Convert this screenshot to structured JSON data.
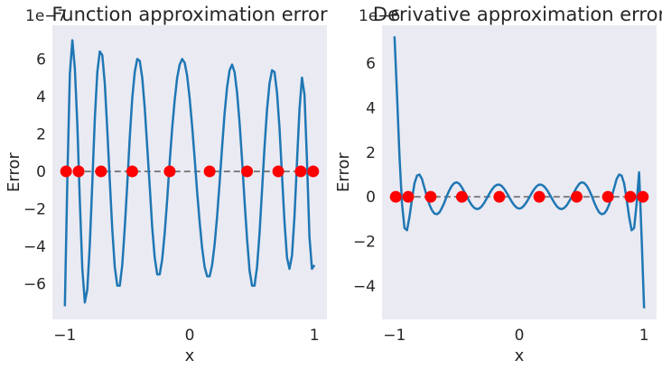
{
  "chart_data": [
    {
      "type": "line",
      "title": "Function approximation error",
      "xlabel": "x",
      "ylabel": "Error",
      "offset_label": "1e−7",
      "xlim": [
        -1.1,
        1.1
      ],
      "ylim": [
        -7.9,
        7.8
      ],
      "xticks": [
        -1,
        0,
        1
      ],
      "yticks": [
        -6,
        -4,
        -2,
        0,
        2,
        4,
        6
      ],
      "grid": false,
      "background": "#eaeaf2",
      "line_color": "#1f77b4",
      "zero_line_color": "#808080",
      "node_color": "#ff0000",
      "nodes_x": [
        -0.99,
        -0.89,
        -0.71,
        -0.46,
        -0.16,
        0.16,
        0.46,
        0.71,
        0.89,
        0.99
      ],
      "series": [
        {
          "x": [
            -1.0,
            -0.98,
            -0.96,
            -0.94,
            -0.92,
            -0.9,
            -0.88,
            -0.86,
            -0.84,
            -0.82,
            -0.8,
            -0.78,
            -0.76,
            -0.74,
            -0.72,
            -0.7,
            -0.68,
            -0.66,
            -0.64,
            -0.62,
            -0.6,
            -0.58,
            -0.56,
            -0.54,
            -0.52,
            -0.5,
            -0.48,
            -0.46,
            -0.44,
            -0.42,
            -0.4,
            -0.38,
            -0.36,
            -0.34,
            -0.32,
            -0.3,
            -0.28,
            -0.26,
            -0.24,
            -0.22,
            -0.2,
            -0.18,
            -0.16,
            -0.14,
            -0.12,
            -0.1,
            -0.08,
            -0.06,
            -0.04,
            -0.02,
            0.0,
            0.02,
            0.04,
            0.06,
            0.08,
            0.1,
            0.12,
            0.14,
            0.16,
            0.18,
            0.2,
            0.22,
            0.24,
            0.26,
            0.28,
            0.3,
            0.32,
            0.34,
            0.36,
            0.38,
            0.4,
            0.42,
            0.44,
            0.46,
            0.48,
            0.5,
            0.52,
            0.54,
            0.56,
            0.58,
            0.6,
            0.62,
            0.64,
            0.66,
            0.68,
            0.7,
            0.72,
            0.74,
            0.76,
            0.78,
            0.8,
            0.82,
            0.84,
            0.86,
            0.88,
            0.9,
            0.92,
            0.94,
            0.96,
            0.98,
            1.0
          ],
          "y": [
            -7.2,
            -0.4,
            5.2,
            7.0,
            5.5,
            2.5,
            -1.6,
            -5.2,
            -7.0,
            -6.3,
            -3.9,
            -0.6,
            2.8,
            5.3,
            6.4,
            6.2,
            4.7,
            2.2,
            -0.5,
            -3.1,
            -5.1,
            -6.1,
            -6.1,
            -5.0,
            -3.0,
            -0.7,
            1.8,
            3.9,
            5.3,
            6.0,
            5.9,
            5.0,
            3.4,
            1.3,
            -0.8,
            -3.0,
            -4.6,
            -5.5,
            -5.5,
            -4.7,
            -3.3,
            -1.5,
            0.5,
            2.3,
            3.8,
            5.0,
            5.7,
            6.0,
            5.8,
            5.1,
            3.9,
            2.4,
            0.7,
            -1.1,
            -2.7,
            -4.1,
            -5.1,
            -5.6,
            -5.6,
            -5.0,
            -3.9,
            -2.4,
            -0.6,
            1.3,
            3.1,
            4.5,
            5.4,
            5.7,
            5.3,
            4.2,
            2.6,
            0.6,
            -1.6,
            -3.6,
            -5.3,
            -6.1,
            -6.1,
            -5.1,
            -3.3,
            -1.0,
            1.3,
            3.3,
            4.7,
            5.4,
            5.3,
            4.2,
            2.3,
            -0.2,
            -2.7,
            -4.6,
            -5.2,
            -4.5,
            -2.4,
            0.5,
            3.3,
            5.0,
            4.1,
            0.6,
            -3.5,
            -5.2,
            -5.0
          ]
        }
      ]
    },
    {
      "type": "line",
      "title": "Derivative approximation error",
      "xlabel": "x",
      "ylabel": "Error",
      "offset_label": "1e−6",
      "xlim": [
        -1.1,
        1.1
      ],
      "ylim": [
        -5.5,
        7.7
      ],
      "xticks": [
        -1,
        0,
        1
      ],
      "yticks": [
        -4,
        -2,
        0,
        2,
        4,
        6
      ],
      "grid": false,
      "background": "#eaeaf2",
      "line_color": "#1f77b4",
      "zero_line_color": "#808080",
      "node_color": "#ff0000",
      "nodes_x": [
        -0.99,
        -0.89,
        -0.71,
        -0.46,
        -0.16,
        0.16,
        0.46,
        0.71,
        0.89,
        0.99
      ],
      "series": [
        {
          "x": [
            -1.0,
            -0.98,
            -0.96,
            -0.94,
            -0.92,
            -0.9,
            -0.88,
            -0.86,
            -0.84,
            -0.82,
            -0.8,
            -0.78,
            -0.76,
            -0.74,
            -0.72,
            -0.7,
            -0.68,
            -0.66,
            -0.64,
            -0.62,
            -0.6,
            -0.58,
            -0.56,
            -0.54,
            -0.52,
            -0.5,
            -0.48,
            -0.46,
            -0.44,
            -0.42,
            -0.4,
            -0.38,
            -0.36,
            -0.34,
            -0.32,
            -0.3,
            -0.28,
            -0.26,
            -0.24,
            -0.22,
            -0.2,
            -0.18,
            -0.16,
            -0.14,
            -0.12,
            -0.1,
            -0.08,
            -0.06,
            -0.04,
            -0.02,
            0.0,
            0.02,
            0.04,
            0.06,
            0.08,
            0.1,
            0.12,
            0.14,
            0.16,
            0.18,
            0.2,
            0.22,
            0.24,
            0.26,
            0.28,
            0.3,
            0.32,
            0.34,
            0.36,
            0.38,
            0.4,
            0.42,
            0.44,
            0.46,
            0.48,
            0.5,
            0.52,
            0.54,
            0.56,
            0.58,
            0.6,
            0.62,
            0.64,
            0.66,
            0.68,
            0.7,
            0.72,
            0.74,
            0.76,
            0.78,
            0.8,
            0.82,
            0.84,
            0.86,
            0.88,
            0.9,
            0.92,
            0.94,
            0.96,
            0.98,
            1.0
          ],
          "y": [
            7.2,
            4.6,
            1.8,
            -0.3,
            -1.4,
            -1.5,
            -0.9,
            -0.1,
            0.6,
            0.95,
            1.0,
            0.8,
            0.4,
            0.0,
            -0.35,
            -0.6,
            -0.75,
            -0.78,
            -0.7,
            -0.5,
            -0.25,
            0.05,
            0.3,
            0.5,
            0.62,
            0.65,
            0.58,
            0.42,
            0.22,
            0.0,
            -0.2,
            -0.38,
            -0.5,
            -0.55,
            -0.52,
            -0.42,
            -0.26,
            -0.06,
            0.14,
            0.32,
            0.46,
            0.54,
            0.55,
            0.48,
            0.35,
            0.17,
            -0.03,
            -0.22,
            -0.38,
            -0.49,
            -0.53,
            -0.49,
            -0.38,
            -0.22,
            -0.03,
            0.17,
            0.35,
            0.48,
            0.55,
            0.54,
            0.46,
            0.32,
            0.14,
            -0.06,
            -0.26,
            -0.42,
            -0.52,
            -0.55,
            -0.5,
            -0.38,
            -0.2,
            0.0,
            0.22,
            0.42,
            0.58,
            0.65,
            0.62,
            0.5,
            0.3,
            0.05,
            -0.25,
            -0.5,
            -0.7,
            -0.78,
            -0.75,
            -0.6,
            -0.35,
            0.0,
            0.4,
            0.8,
            1.0,
            0.95,
            0.6,
            -0.1,
            -0.9,
            -1.5,
            -1.4,
            -0.3,
            1.1,
            -1.8,
            -5.0
          ]
        }
      ]
    }
  ]
}
